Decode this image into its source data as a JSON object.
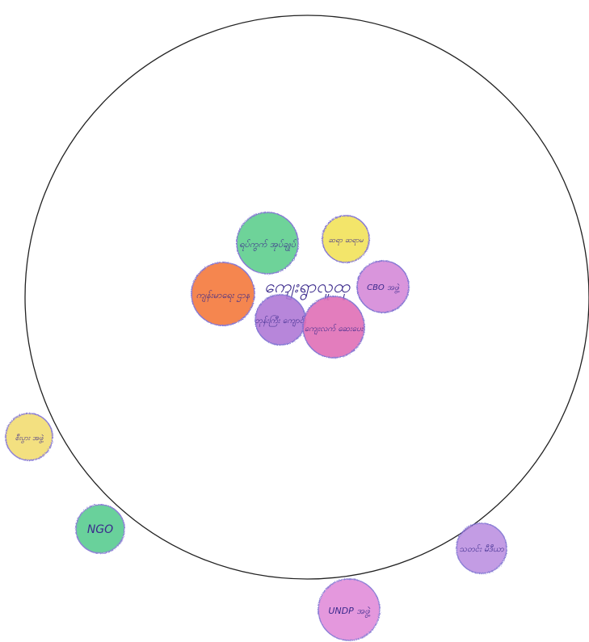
{
  "diagram": {
    "type": "venn-chapati",
    "center_label": "ကျေးရွာလူထု",
    "circles": [
      {
        "label": "ရပ်ကွက် အုပ်ချုပ်",
        "color": "#5fcf8f"
      },
      {
        "label": "ဆရာ ဆရာမ",
        "color": "#f2e35a"
      },
      {
        "label": "ကျန်းမာရေး ဌာန",
        "color": "#f47a3c"
      },
      {
        "label": "ဘုန်းကြီး ကျောင်း",
        "color": "#b07ad6"
      },
      {
        "label": "ကျေးလက် ဆေးပေး",
        "color": "#e06fb6"
      },
      {
        "label": "CBO အဖွဲ့",
        "color": "#d58ad9"
      },
      {
        "label": "စီးပွား အဖွဲ့",
        "color": "#f2db6a"
      },
      {
        "label": "NGO",
        "color": "#4fc98a"
      },
      {
        "label": "UNDP အဖွဲ့",
        "color": "#e087d8"
      },
      {
        "label": "သတင်း မီဒီယာ",
        "color": "#b98be0"
      }
    ]
  }
}
